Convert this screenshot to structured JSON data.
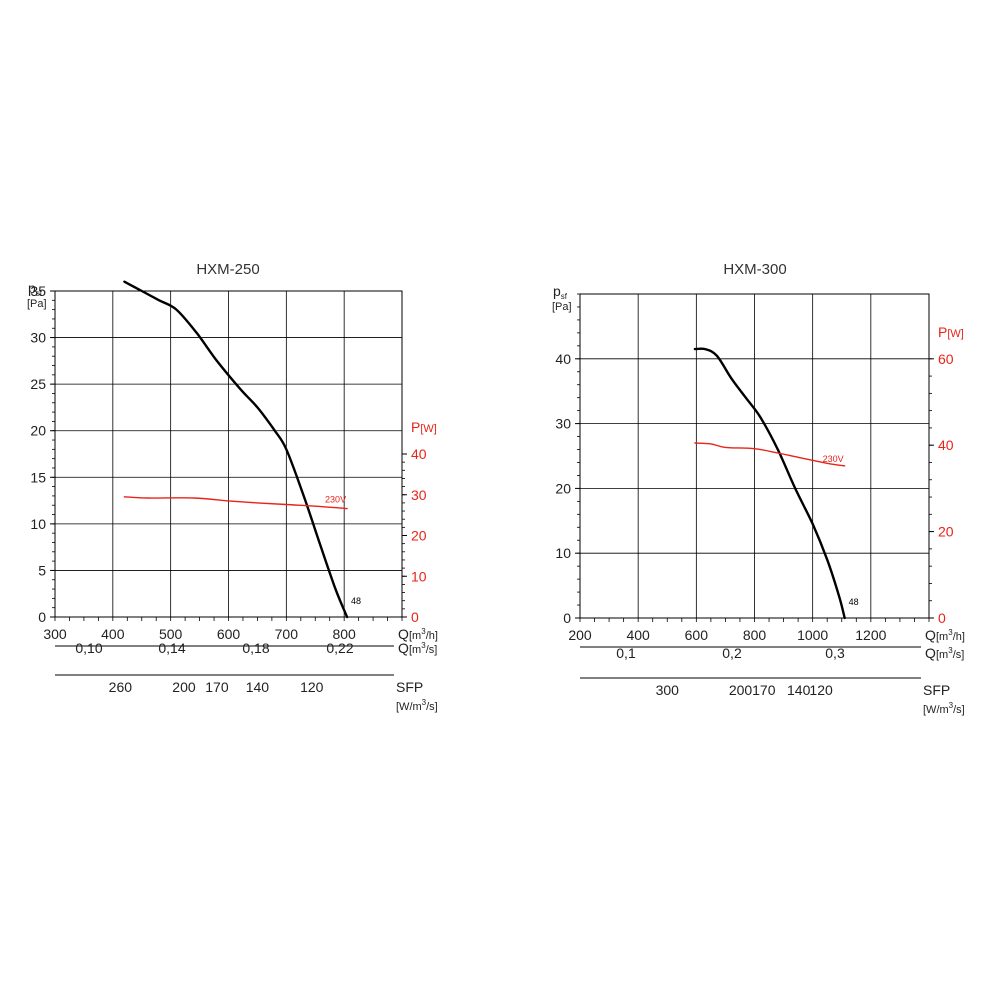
{
  "chart_data": [
    {
      "type": "line",
      "title": "HXM-250",
      "ylabel": "p",
      "ylabel_sub": "sf",
      "ylabel_unit": "[Pa]",
      "ylim": [
        0,
        35
      ],
      "yticks": [
        0,
        5,
        10,
        15,
        20,
        25,
        30,
        35
      ],
      "y2label": "P",
      "y2label_unit": "[W]",
      "y2ticks": [
        0,
        10,
        20,
        30,
        40
      ],
      "x": {
        "label": "Q",
        "unit_pre": "[m",
        "unit_sup": "3",
        "unit_post": "/h]",
        "range": [
          300,
          900
        ],
        "ticks": [
          300,
          400,
          500,
          600,
          700,
          800
        ]
      },
      "x2": {
        "label": "Q",
        "unit_pre": "[m",
        "unit_sup": "3",
        "unit_post": "/s]",
        "ticks": [
          {
            "label": "0,10",
            "value": 0.1
          },
          {
            "label": "0,14",
            "value": 0.14
          },
          {
            "label": "0,18",
            "value": 0.18
          },
          {
            "label": "0,22",
            "value": 0.22
          }
        ]
      },
      "sfp": {
        "label": "SFP",
        "unit_pre": "[W/m",
        "unit_sup": "3",
        "unit_post": "/s]",
        "ticks": [
          {
            "label": "260",
            "at_q": 413
          },
          {
            "label": "200",
            "at_q": 523
          },
          {
            "label": "170",
            "at_q": 580
          },
          {
            "label": "140",
            "at_q": 650
          },
          {
            "label": "120",
            "at_q": 744
          }
        ]
      },
      "series": [
        {
          "axis": "left",
          "color": "#000000",
          "end_label": "48",
          "points": [
            [
              420,
              36
            ],
            [
              450,
              35
            ],
            [
              480,
              34
            ],
            [
              510,
              33
            ],
            [
              545,
              30.5
            ],
            [
              580,
              27.5
            ],
            [
              620,
              24.5
            ],
            [
              650,
              22.5
            ],
            [
              680,
              20
            ],
            [
              700,
              18
            ],
            [
              730,
              13
            ],
            [
              760,
              7.5
            ],
            [
              785,
              3
            ],
            [
              805,
              0
            ]
          ]
        },
        {
          "axis": "right",
          "color": "#e8231a",
          "end_label": "230V",
          "points": [
            [
              420,
              29.5
            ],
            [
              460,
              29.2
            ],
            [
              540,
              29.2
            ],
            [
              600,
              28.5
            ],
            [
              650,
              28
            ],
            [
              700,
              27.6
            ],
            [
              750,
              27.2
            ],
            [
              805,
              26.6
            ]
          ]
        }
      ]
    },
    {
      "type": "line",
      "title": "HXM-300",
      "ylabel": "p",
      "ylabel_sub": "sf",
      "ylabel_unit": "[Pa]",
      "ylim": [
        0,
        50
      ],
      "yticks": [
        0,
        10,
        20,
        30,
        40
      ],
      "y2label": "P",
      "y2label_unit": "[W]",
      "y2ticks": [
        0,
        20,
        40,
        60
      ],
      "x": {
        "label": "Q",
        "unit_pre": "[m",
        "unit_sup": "3",
        "unit_post": "/h]",
        "range": [
          200,
          1400
        ],
        "ticks": [
          200,
          400,
          600,
          800,
          1000,
          1200
        ]
      },
      "x2": {
        "label": "Q",
        "unit_pre": "[m",
        "unit_sup": "3",
        "unit_post": "/s]",
        "ticks": [
          {
            "label": "0,1",
            "value": 0.1
          },
          {
            "label": "0,2",
            "value": 0.2
          },
          {
            "label": "0,3",
            "value": 0.3
          }
        ]
      },
      "sfp": {
        "label": "SFP",
        "unit_pre": "[W/m",
        "unit_sup": "3",
        "unit_post": "/s]",
        "ticks": [
          {
            "label": "300",
            "at_q": 500
          },
          {
            "label": "200",
            "at_q": 752
          },
          {
            "label": "170",
            "at_q": 832
          },
          {
            "label": "140",
            "at_q": 952
          },
          {
            "label": "120",
            "at_q": 1029
          }
        ]
      },
      "series": [
        {
          "axis": "left",
          "color": "#000000",
          "end_label": "48",
          "points": [
            [
              595,
              41.5
            ],
            [
              630,
              41.5
            ],
            [
              670,
              40.5
            ],
            [
              720,
              37
            ],
            [
              770,
              34
            ],
            [
              820,
              31
            ],
            [
              880,
              26
            ],
            [
              940,
              20
            ],
            [
              1000,
              14.5
            ],
            [
              1050,
              9
            ],
            [
              1090,
              3.5
            ],
            [
              1110,
              0
            ]
          ]
        },
        {
          "axis": "right",
          "color": "#e8231a",
          "end_label": "230V",
          "points": [
            [
              595,
              40.5
            ],
            [
              650,
              40.3
            ],
            [
              700,
              39.5
            ],
            [
              800,
              39.2
            ],
            [
              880,
              38.2
            ],
            [
              950,
              37.2
            ],
            [
              1050,
              35.8
            ],
            [
              1110,
              35.2
            ]
          ]
        }
      ]
    }
  ]
}
